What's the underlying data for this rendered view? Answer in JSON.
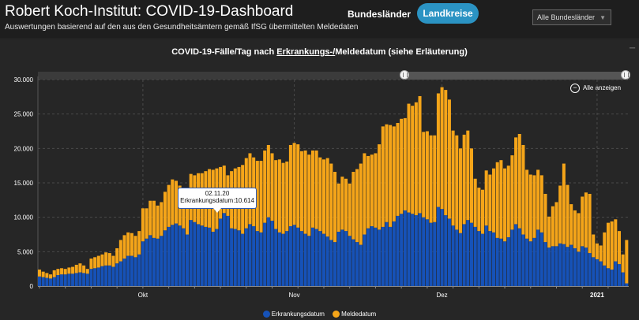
{
  "header": {
    "title": "Robert Koch-Institut: COVID-19-Dashboard",
    "subtitle": "Auswertungen basierend auf den aus den Gesundheitsämtern gemäß IfSG übermittelten Meldedaten",
    "nav_bundeslaender": "Bundesländer",
    "nav_landkreise": "Landkreise",
    "select_value": "Alle Bundesländer",
    "accent_color": "#2b93c3"
  },
  "chart_panel": {
    "title_prefix": "COVID-19-Fälle/Tag nach ",
    "title_link": "Erkrankungs-/",
    "title_suffix": "Meldedatum (siehe Erläuterung)",
    "zoom_label": "Alle anzeigen",
    "tooltip": {
      "date": "02.11.20",
      "text": "Erkrankungsdatum:10.614"
    }
  },
  "chart_data": {
    "type": "bar",
    "stacked": true,
    "title": "COVID-19-Fälle/Tag nach Erkrankungs-/Meldedatum (siehe Erläuterung)",
    "xlabel": "",
    "ylabel": "",
    "ylim": [
      0,
      30000
    ],
    "y_ticks": [
      "0",
      "5.000",
      "10.000",
      "15.000",
      "20.000",
      "25.000",
      "30.000"
    ],
    "x_ticks": [
      "Okt",
      "Nov",
      "Dez",
      "2021"
    ],
    "x_tick_index": [
      28,
      69,
      109,
      151
    ],
    "grid": true,
    "legend_position": "bottom",
    "series": [
      {
        "name": "Erkrankungsdatum",
        "color": "#1652b8",
        "values": [
          1400,
          1300,
          1200,
          1100,
          1300,
          1600,
          1700,
          1700,
          1800,
          1800,
          1900,
          2000,
          1900,
          1800,
          2500,
          2600,
          2700,
          2900,
          3000,
          3000,
          2800,
          3300,
          3600,
          4000,
          4400,
          4400,
          4200,
          4600,
          6500,
          6900,
          7400,
          7000,
          6900,
          7300,
          8100,
          8600,
          8900,
          9100,
          8800,
          8400,
          7500,
          9600,
          9300,
          9000,
          8800,
          8600,
          8500,
          7900,
          8300,
          9800,
          10614,
          10200,
          8400,
          8300,
          8100,
          7600,
          8400,
          9000,
          8700,
          8000,
          7800,
          9200,
          10000,
          9500,
          8300,
          7800,
          7600,
          8000,
          8700,
          8900,
          8500,
          8000,
          7600,
          7300,
          8500,
          8300,
          8000,
          7600,
          7200,
          6700,
          6400,
          7900,
          8200,
          8000,
          7300,
          6800,
          6400,
          6000,
          7500,
          8400,
          8700,
          8500,
          8200,
          8600,
          9300,
          8600,
          9400,
          10200,
          10500,
          11000,
          10700,
          10500,
          10300,
          10600,
          10000,
          9700,
          9200,
          9300,
          11500,
          11200,
          10300,
          9800,
          8800,
          8200,
          7700,
          9000,
          9600,
          9200,
          8600,
          8000,
          7600,
          8800,
          8000,
          7800,
          7000,
          6900,
          6500,
          7100,
          8200,
          9000,
          8400,
          7500,
          6900,
          6500,
          7000,
          8200,
          7800,
          6400,
          5600,
          5800,
          5800,
          6200,
          6100,
          5700,
          6000,
          5500,
          5000,
          5800,
          5600,
          4800,
          4200,
          3900,
          3600,
          3000,
          2600,
          2400,
          3600,
          3200,
          2000,
          400
        ]
      },
      {
        "name": "Meldedatum",
        "color": "#f5a519",
        "values": [
          1000,
          800,
          700,
          600,
          1000,
          900,
          900,
          800,
          900,
          1000,
          1200,
          1300,
          1100,
          700,
          1500,
          1600,
          1700,
          1700,
          1900,
          1800,
          1600,
          2200,
          3100,
          3400,
          3400,
          3300,
          3100,
          3400,
          4800,
          4400,
          5000,
          5400,
          4800,
          4900,
          5600,
          6100,
          6600,
          6200,
          5800,
          5600,
          4800,
          6700,
          6800,
          7400,
          7600,
          8100,
          8500,
          9000,
          8800,
          7500,
          6900,
          5900,
          8300,
          8800,
          9200,
          10000,
          10200,
          10300,
          10000,
          10200,
          10400,
          10500,
          10500,
          9800,
          10000,
          10600,
          10300,
          10100,
          11800,
          11900,
          12100,
          11600,
          12100,
          11800,
          11200,
          11400,
          10700,
          10800,
          11400,
          11100,
          10200,
          7000,
          7700,
          7600,
          7600,
          9800,
          10600,
          11800,
          11800,
          10500,
          10400,
          10800,
          12400,
          14600,
          14200,
          14800,
          13800,
          13500,
          13800,
          13400,
          15800,
          15700,
          16400,
          17000,
          12400,
          12800,
          12700,
          12600,
          16500,
          17700,
          18200,
          17300,
          13800,
          13700,
          12300,
          13000,
          13000,
          10800,
          7000,
          6300,
          6400,
          8000,
          8200,
          9300,
          11000,
          11400,
          10600,
          10400,
          10800,
          12600,
          13700,
          13000,
          10000,
          9700,
          9100,
          8700,
          8300,
          7000,
          4500,
          5800,
          6400,
          8400,
          11700,
          9000,
          5900,
          5500,
          5600,
          7200,
          8000,
          8600,
          3300,
          2300,
          2300,
          4800,
          6600,
          7000,
          6100,
          4800,
          2600,
          6300
        ]
      }
    ]
  },
  "legend": {
    "erkrankung": "Erkrankungsdatum",
    "melde": "Meldedatum"
  }
}
